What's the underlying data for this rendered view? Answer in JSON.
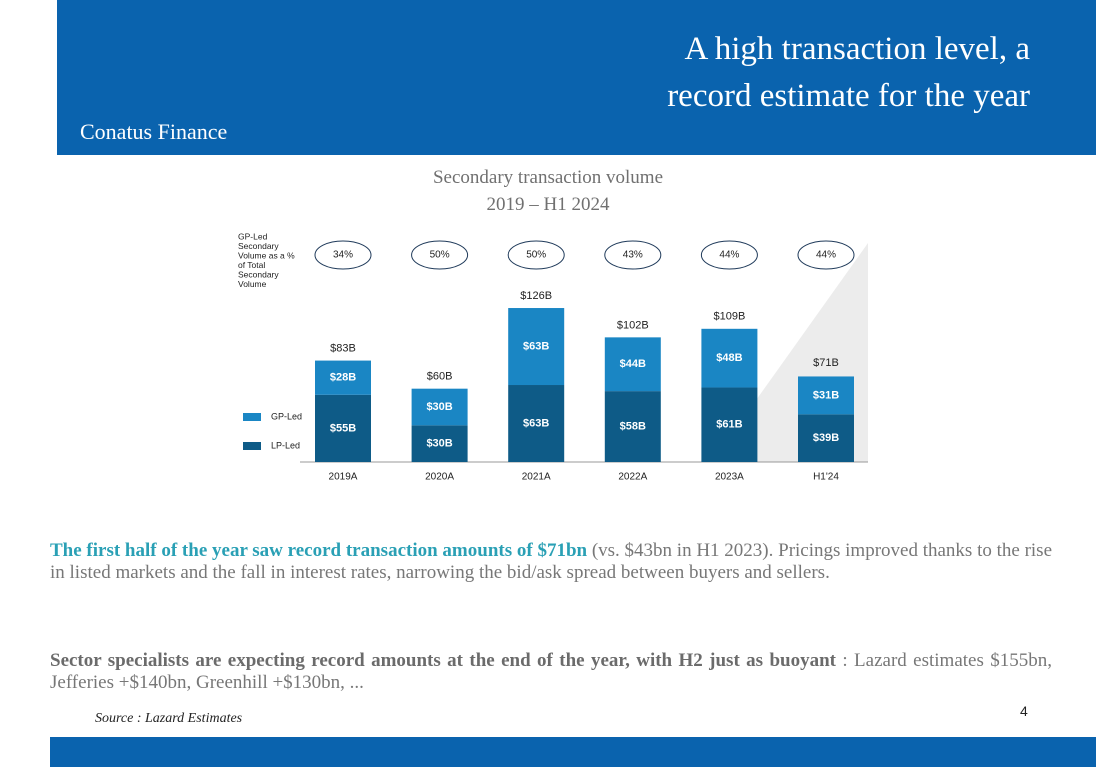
{
  "header": {
    "title_lines": [
      "A high transaction level, a",
      "record estimate for the year"
    ],
    "brand": "Conatus Finance"
  },
  "chart_data": {
    "type": "stacked_bar",
    "title_lines": [
      "Secondary transaction volume",
      "2019 – H1 2024"
    ],
    "categories": [
      "2019A",
      "2020A",
      "2021A",
      "2022A",
      "2023A",
      "H1'24"
    ],
    "series": [
      {
        "name": "LP-Led",
        "color": "#0e5b87",
        "values": [
          55,
          30,
          63,
          58,
          61,
          39
        ],
        "value_labels": [
          "$55B",
          "$30B",
          "$63B",
          "$58B",
          "$61B",
          "$39B"
        ]
      },
      {
        "name": "GP-Led",
        "color": "#1a86c4",
        "values": [
          28,
          30,
          63,
          44,
          48,
          31
        ],
        "value_labels": [
          "$28B",
          "$30B",
          "$63B",
          "$44B",
          "$48B",
          "$31B"
        ]
      }
    ],
    "totals": {
      "values": [
        83,
        60,
        126,
        102,
        109,
        71
      ],
      "value_labels": [
        "$83B",
        "$60B",
        "$126B",
        "$102B",
        "$109B",
        "$71B"
      ]
    },
    "gp_share": {
      "label_lines": [
        "GP-Led",
        "Secondary",
        "Volume as a %",
        "of Total",
        "Secondary",
        "Volume"
      ],
      "values": [
        34,
        50,
        50,
        43,
        44,
        44
      ],
      "value_labels": [
        "34%",
        "50%",
        "50%",
        "43%",
        "44%",
        "44%"
      ]
    }
  },
  "text": {
    "paragraphs": [
      {
        "lead": "The first half of the year saw record transaction amounts of $71bn",
        "body": "(vs. $43bn in H1 2023). Pricings improved thanks to the rise in listed markets and the fall in interest rates, narrowing the bid/ask spread between buyers and sellers."
      },
      {
        "lead": "Sector specialists are expecting record amounts at the end of the year, with H2 just as buoyant",
        "body": ": Lazard estimates $155bn, Jefferies +$140bn, Greenhill +$130bn, ..."
      }
    ],
    "source": "Source : Lazard Estimates",
    "page_number": "4"
  }
}
